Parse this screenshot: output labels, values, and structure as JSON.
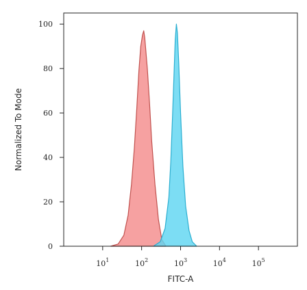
{
  "chart_data": {
    "type": "area",
    "xlabel": "FITC-A",
    "ylabel": "Normalized To Mode",
    "xscale": "log",
    "xlim": [
      1,
      1000000
    ],
    "ylim": [
      0,
      105
    ],
    "x_ticks": [
      {
        "base": "10",
        "exp": "1",
        "value": 10
      },
      {
        "base": "10",
        "exp": "2",
        "value": 100
      },
      {
        "base": "10",
        "exp": "3",
        "value": 1000
      },
      {
        "base": "10",
        "exp": "4",
        "value": 10000
      },
      {
        "base": "10",
        "exp": "5",
        "value": 100000
      }
    ],
    "y_ticks": [
      "0",
      "20",
      "40",
      "60",
      "80",
      "100"
    ],
    "grid": false,
    "series": [
      {
        "color": "#f48c8c",
        "stroke": "#c0504d",
        "x": [
          16,
          25,
          35,
          45,
          55,
          65,
          75,
          85,
          95,
          105,
          113,
          120,
          140,
          160,
          180,
          220,
          270,
          330,
          420
        ],
        "y": [
          0,
          1,
          5,
          14,
          28,
          44,
          62,
          79,
          90,
          95,
          97,
          94,
          80,
          64,
          48,
          28,
          12,
          3,
          0
        ]
      },
      {
        "color": "#5fd5f2",
        "stroke": "#2aaed0",
        "x": [
          200,
          300,
          400,
          500,
          560,
          620,
          680,
          730,
          780,
          830,
          900,
          1000,
          1150,
          1350,
          1650,
          2000,
          2600
        ],
        "y": [
          0,
          2,
          8,
          22,
          38,
          58,
          78,
          93,
          100,
          96,
          82,
          60,
          36,
          18,
          7,
          2,
          0
        ]
      }
    ]
  }
}
